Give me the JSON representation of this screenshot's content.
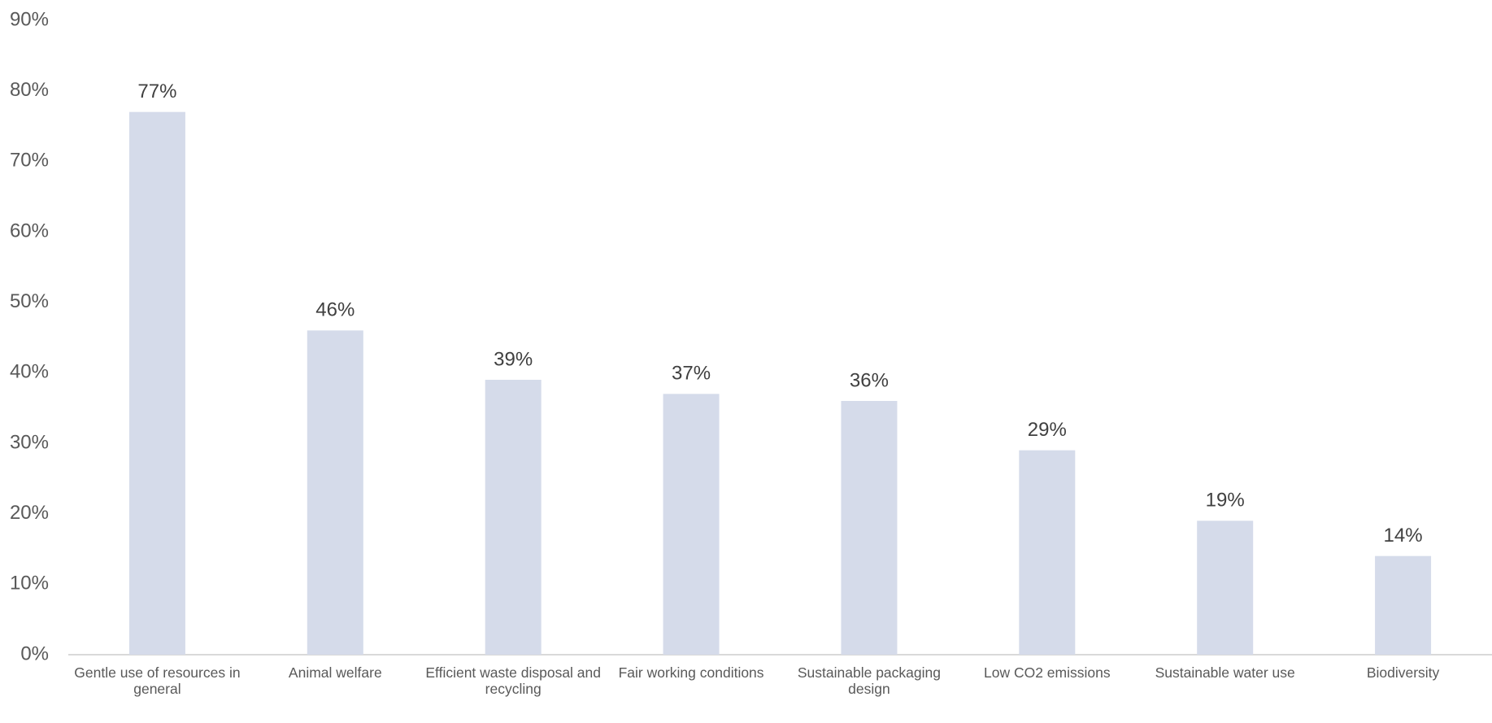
{
  "chart_data": {
    "type": "bar",
    "categories": [
      "Gentle use of resources in general",
      "Animal welfare",
      "Efficient waste disposal and recycling",
      "Fair working conditions",
      "Sustainable packaging design",
      "Low CO2 emissions",
      "Sustainable water use",
      "Biodiversity"
    ],
    "values": [
      77,
      46,
      39,
      37,
      36,
      29,
      19,
      14
    ],
    "value_labels": [
      "77%",
      "46%",
      "39%",
      "37%",
      "36%",
      "29%",
      "19%",
      "14%"
    ],
    "color": "#d5dbea",
    "ylim": [
      0,
      90
    ],
    "yticks": [
      {
        "value": 0,
        "label": "0%"
      },
      {
        "value": 10,
        "label": "10%"
      },
      {
        "value": 20,
        "label": "20%"
      },
      {
        "value": 30,
        "label": "30%"
      },
      {
        "value": 40,
        "label": "40%"
      },
      {
        "value": 50,
        "label": "50%"
      },
      {
        "value": 60,
        "label": "60%"
      },
      {
        "value": 70,
        "label": "70%"
      },
      {
        "value": 80,
        "label": "80%"
      },
      {
        "value": 90,
        "label": "90%"
      }
    ],
    "grid": false
  }
}
